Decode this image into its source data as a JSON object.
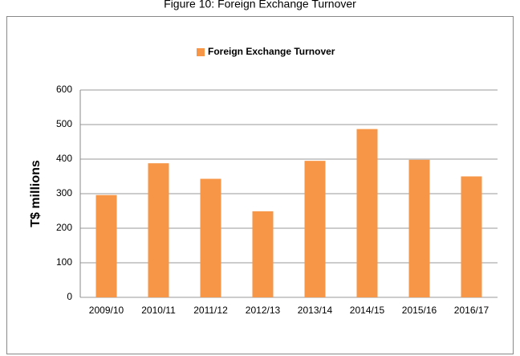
{
  "chart_data": {
    "type": "bar",
    "title": "Figure 10: Foreign Exchange Turnover",
    "y_label": "T$ millions",
    "categories": [
      "2009/10",
      "2010/11",
      "2011/12",
      "2012/13",
      "2013/14",
      "2014/15",
      "2015/16",
      "2016/17"
    ],
    "series": [
      {
        "name": "Foreign Exchange Turnover",
        "color": "#f79646",
        "values": [
          296,
          388,
          343,
          249,
          395,
          487,
          398,
          350
        ]
      }
    ],
    "ylim": [
      0,
      600
    ],
    "yticks": [
      0,
      100,
      200,
      300,
      400,
      500,
      600
    ],
    "grid": true,
    "legend": "top"
  }
}
